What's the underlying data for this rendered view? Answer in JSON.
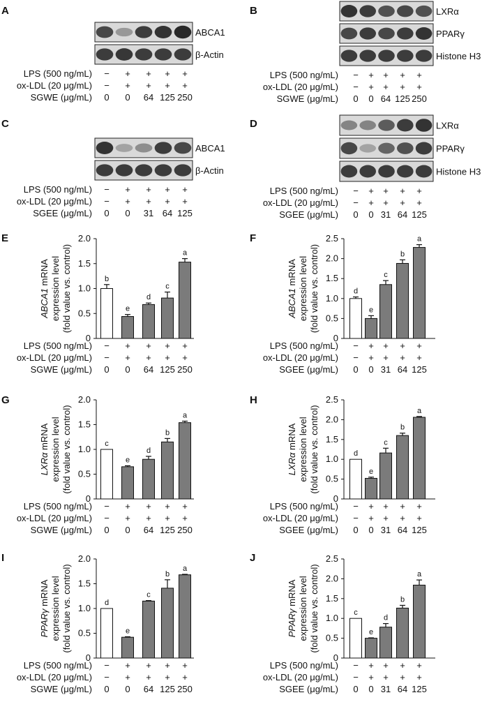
{
  "chart_data": [
    {
      "panel": "A",
      "type": "western-blot",
      "lanes": 5,
      "bands": [
        "ABCA1",
        "β-Actin"
      ],
      "band_intensity": [
        [
          0.8,
          0.4,
          0.85,
          0.9,
          0.95
        ],
        [
          0.85,
          0.88,
          0.85,
          0.85,
          0.85
        ]
      ],
      "treatment_rows": [
        {
          "label": "LPS (500 ng/mL)",
          "values": [
            "−",
            "+",
            "+",
            "+",
            "+"
          ]
        },
        {
          "label": "ox-LDL (20 μg/mL)",
          "values": [
            "−",
            "+",
            "+",
            "+",
            "+"
          ]
        },
        {
          "label": "SGWE (μg/mL)",
          "values": [
            "0",
            "0",
            "64",
            "125",
            "250"
          ]
        }
      ]
    },
    {
      "panel": "B",
      "type": "western-blot",
      "lanes": 5,
      "bands": [
        "LXRα",
        "PPARγ",
        "Histone H3"
      ],
      "band_intensity": [
        [
          0.9,
          0.85,
          0.75,
          0.8,
          0.75
        ],
        [
          0.8,
          0.85,
          0.8,
          0.85,
          0.9
        ],
        [
          0.85,
          0.85,
          0.85,
          0.85,
          0.85
        ]
      ],
      "treatment_rows": [
        {
          "label": "LPS (500 ng/mL)",
          "values": [
            "−",
            "+",
            "+",
            "+",
            "+"
          ]
        },
        {
          "label": "ox-LDL (20 μg/mL)",
          "values": [
            "−",
            "+",
            "+",
            "+",
            "+"
          ]
        },
        {
          "label": "SGWE (μg/mL)",
          "values": [
            "0",
            "0",
            "64",
            "125",
            "250"
          ]
        }
      ]
    },
    {
      "panel": "C",
      "type": "western-blot",
      "lanes": 5,
      "bands": [
        "ABCA1",
        "β-Actin"
      ],
      "band_intensity": [
        [
          0.9,
          0.35,
          0.45,
          0.85,
          0.8
        ],
        [
          0.85,
          0.85,
          0.85,
          0.85,
          0.85
        ]
      ],
      "treatment_rows": [
        {
          "label": "LPS (500 ng/mL)",
          "values": [
            "−",
            "+",
            "+",
            "+",
            "+"
          ]
        },
        {
          "label": "ox-LDL (20 μg/mL)",
          "values": [
            "−",
            "+",
            "+",
            "+",
            "+"
          ]
        },
        {
          "label": "SGEE (μg/mL)",
          "values": [
            "0",
            "0",
            "31",
            "64",
            "125"
          ]
        }
      ]
    },
    {
      "panel": "D",
      "type": "western-blot",
      "lanes": 5,
      "bands": [
        "LXRα",
        "PPARγ",
        "Histone H3"
      ],
      "band_intensity": [
        [
          0.5,
          0.5,
          0.7,
          0.85,
          0.9
        ],
        [
          0.8,
          0.35,
          0.65,
          0.75,
          0.85
        ],
        [
          0.85,
          0.85,
          0.85,
          0.85,
          0.85
        ]
      ],
      "treatment_rows": [
        {
          "label": "LPS (500 ng/mL)",
          "values": [
            "−",
            "+",
            "+",
            "+",
            "+"
          ]
        },
        {
          "label": "ox-LDL (20 μg/mL)",
          "values": [
            "−",
            "+",
            "+",
            "+",
            "+"
          ]
        },
        {
          "label": "SGEE (μg/mL)",
          "values": [
            "0",
            "0",
            "31",
            "64",
            "125"
          ]
        }
      ]
    },
    {
      "panel": "E",
      "type": "bar",
      "ylabel_italic": "ABCA1",
      "ylabel_rest": " mRNA",
      "ylabel_line2": "expression level",
      "ylabel_line3": "(fold value vs. control)",
      "ylim": [
        0,
        2.0
      ],
      "yticks": [
        "0",
        "0.5",
        "1.0",
        "1.5",
        "2.0"
      ],
      "values": [
        1.0,
        0.44,
        0.68,
        0.81,
        1.53
      ],
      "errors": [
        0.08,
        0.04,
        0.03,
        0.12,
        0.07
      ],
      "letters": [
        "b",
        "e",
        "d",
        "c",
        "a"
      ],
      "bar_colors": [
        "#ffffff",
        "#7b7b7b",
        "#7b7b7b",
        "#7b7b7b",
        "#7b7b7b"
      ],
      "treatment_rows": [
        {
          "label": "LPS (500 ng/mL)",
          "values": [
            "−",
            "+",
            "+",
            "+",
            "+"
          ]
        },
        {
          "label": "ox-LDL (20 μg/mL)",
          "values": [
            "−",
            "+",
            "+",
            "+",
            "+"
          ]
        },
        {
          "label": "SGWE (μg/mL)",
          "values": [
            "0",
            "0",
            "64",
            "125",
            "250"
          ]
        }
      ]
    },
    {
      "panel": "F",
      "type": "bar",
      "ylabel_italic": "ABCA1",
      "ylabel_rest": " mRNA",
      "ylabel_line2": "expression level",
      "ylabel_line3": "(fold value vs. control)",
      "ylim": [
        0,
        2.5
      ],
      "yticks": [
        "0",
        "0.5",
        "1.0",
        "1.5",
        "2.0",
        "2.5"
      ],
      "values": [
        1.0,
        0.5,
        1.35,
        1.88,
        2.28
      ],
      "errors": [
        0.04,
        0.07,
        0.1,
        0.09,
        0.07
      ],
      "letters": [
        "d",
        "e",
        "c",
        "b",
        "a"
      ],
      "bar_colors": [
        "#ffffff",
        "#7b7b7b",
        "#7b7b7b",
        "#7b7b7b",
        "#7b7b7b"
      ],
      "treatment_rows": [
        {
          "label": "LPS (500 ng/mL)",
          "values": [
            "−",
            "+",
            "+",
            "+",
            "+"
          ]
        },
        {
          "label": "ox-LDL (20 μg/mL)",
          "values": [
            "−",
            "+",
            "+",
            "+",
            "+"
          ]
        },
        {
          "label": "SGEE (μg/mL)",
          "values": [
            "0",
            "0",
            "31",
            "64",
            "125"
          ]
        }
      ]
    },
    {
      "panel": "G",
      "type": "bar",
      "ylabel_italic": "LXRα",
      "ylabel_rest": " mRNA",
      "ylabel_line2": "expression level",
      "ylabel_line3": "(fold value vs. control)",
      "ylim": [
        0,
        2.0
      ],
      "yticks": [
        "0",
        "0.5",
        "1.0",
        "1.5",
        "2.0"
      ],
      "values": [
        1.0,
        0.65,
        0.8,
        1.15,
        1.54
      ],
      "errors": [
        0.0,
        0.02,
        0.06,
        0.07,
        0.03
      ],
      "letters": [
        "c",
        "e",
        "d",
        "b",
        "a"
      ],
      "bar_colors": [
        "#ffffff",
        "#7b7b7b",
        "#7b7b7b",
        "#7b7b7b",
        "#7b7b7b"
      ],
      "treatment_rows": [
        {
          "label": "LPS (500 ng/mL)",
          "values": [
            "−",
            "+",
            "+",
            "+",
            "+"
          ]
        },
        {
          "label": "ox-LDL (20 μg/mL)",
          "values": [
            "−",
            "+",
            "+",
            "+",
            "+"
          ]
        },
        {
          "label": "SGWE (μg/mL)",
          "values": [
            "0",
            "0",
            "64",
            "125",
            "250"
          ]
        }
      ]
    },
    {
      "panel": "H",
      "type": "bar",
      "ylabel_italic": "LXRα",
      "ylabel_rest": " mRNA",
      "ylabel_line2": "expression level",
      "ylabel_line3": "(fold value vs. control)",
      "ylim": [
        0,
        2.5
      ],
      "yticks": [
        "0",
        "0.5",
        "1.0",
        "1.5",
        "2.0",
        "2.5"
      ],
      "values": [
        1.0,
        0.52,
        1.16,
        1.6,
        2.06
      ],
      "errors": [
        0.0,
        0.03,
        0.12,
        0.06,
        0.02
      ],
      "letters": [
        "d",
        "e",
        "c",
        "b",
        "a"
      ],
      "bar_colors": [
        "#ffffff",
        "#7b7b7b",
        "#7b7b7b",
        "#7b7b7b",
        "#7b7b7b"
      ],
      "treatment_rows": [
        {
          "label": "LPS (500 ng/mL)",
          "values": [
            "−",
            "+",
            "+",
            "+",
            "+"
          ]
        },
        {
          "label": "ox-LDL (20 μg/mL)",
          "values": [
            "−",
            "+",
            "+",
            "+",
            "+"
          ]
        },
        {
          "label": "SGEE (μg/mL)",
          "values": [
            "0",
            "0",
            "31",
            "64",
            "125"
          ]
        }
      ]
    },
    {
      "panel": "I",
      "type": "bar",
      "ylabel_italic": "PPARγ",
      "ylabel_rest": " mRNA",
      "ylabel_line2": "expression level",
      "ylabel_line3": "(fold value vs. control)",
      "ylim": [
        0,
        2.0
      ],
      "yticks": [
        "0",
        "0.5",
        "1.0",
        "1.5",
        "2.0"
      ],
      "values": [
        1.0,
        0.42,
        1.15,
        1.41,
        1.68
      ],
      "errors": [
        0.0,
        0.01,
        0.01,
        0.17,
        0.01
      ],
      "letters": [
        "d",
        "e",
        "c",
        "b",
        "a"
      ],
      "bar_colors": [
        "#ffffff",
        "#7b7b7b",
        "#7b7b7b",
        "#7b7b7b",
        "#7b7b7b"
      ],
      "treatment_rows": [
        {
          "label": "LPS (500 ng/mL)",
          "values": [
            "−",
            "+",
            "+",
            "+",
            "+"
          ]
        },
        {
          "label": "ox-LDL (20 μg/mL)",
          "values": [
            "−",
            "+",
            "+",
            "+",
            "+"
          ]
        },
        {
          "label": "SGWE (μg/mL)",
          "values": [
            "0",
            "0",
            "64",
            "125",
            "250"
          ]
        }
      ]
    },
    {
      "panel": "J",
      "type": "bar",
      "ylabel_italic": "PPARγ",
      "ylabel_rest": " mRNA",
      "ylabel_line2": "expression level",
      "ylabel_line3": "(fold value vs. control)",
      "ylim": [
        0,
        2.5
      ],
      "yticks": [
        "0",
        "0.5",
        "1.0",
        "1.5",
        "2.0",
        "2.5"
      ],
      "values": [
        1.0,
        0.5,
        0.78,
        1.26,
        1.84
      ],
      "errors": [
        0.0,
        0.01,
        0.09,
        0.07,
        0.13
      ],
      "letters": [
        "c",
        "e",
        "d",
        "b",
        "a"
      ],
      "bar_colors": [
        "#ffffff",
        "#7b7b7b",
        "#7b7b7b",
        "#7b7b7b",
        "#7b7b7b"
      ],
      "treatment_rows": [
        {
          "label": "LPS (500 ng/mL)",
          "values": [
            "−",
            "+",
            "+",
            "+",
            "+"
          ]
        },
        {
          "label": "ox-LDL (20 μg/mL)",
          "values": [
            "−",
            "+",
            "+",
            "+",
            "+"
          ]
        },
        {
          "label": "SGEE (μg/mL)",
          "values": [
            "0",
            "0",
            "31",
            "64",
            "125"
          ]
        }
      ]
    }
  ]
}
